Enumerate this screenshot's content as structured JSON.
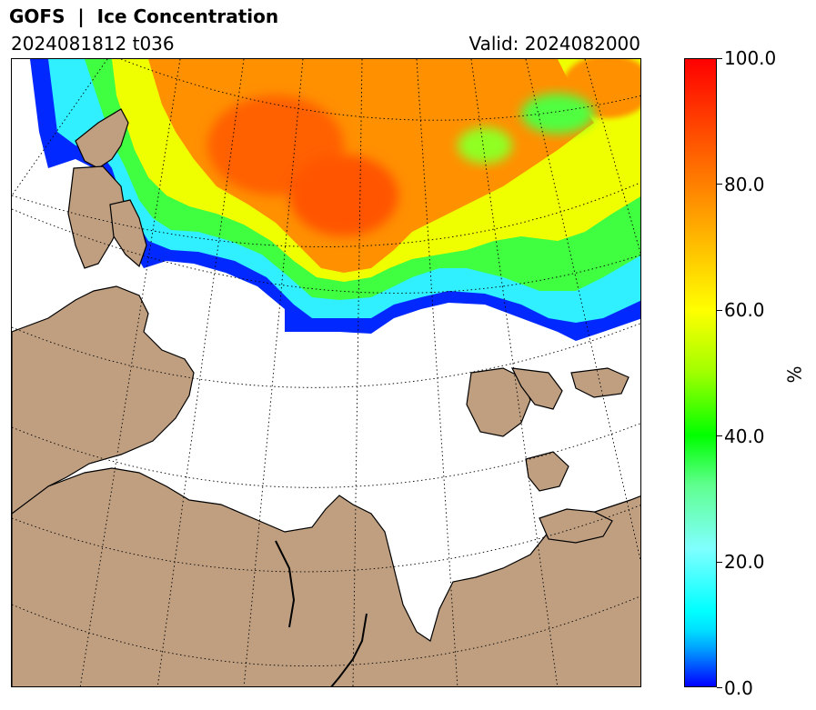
{
  "header": {
    "title": "GOFS  |  Ice Concentration",
    "run": "2024081812 t036",
    "valid": "Valid: 2024082000"
  },
  "colorbar": {
    "unit": "%",
    "ticks": [
      "0.0",
      "20.0",
      "40.0",
      "60.0",
      "80.0",
      "100.0"
    ],
    "colors": [
      "#0000ff",
      "#00ffff",
      "#00ff00",
      "#ffff00",
      "#ff8000",
      "#ff0000"
    ]
  },
  "map": {
    "land_color": "#bf9f80",
    "coastline_color": "#000000",
    "graticule": "dotted"
  }
}
